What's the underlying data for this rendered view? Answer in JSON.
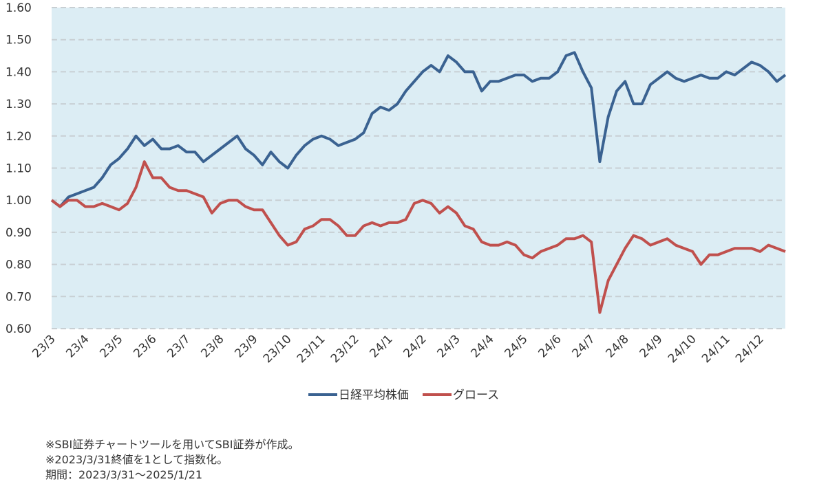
{
  "chart_data": {
    "type": "line",
    "categories": [
      "23/3",
      null,
      null,
      null,
      "23/4",
      null,
      null,
      null,
      "23/5",
      null,
      null,
      null,
      "23/6",
      null,
      null,
      null,
      "23/7",
      null,
      null,
      null,
      "23/8",
      null,
      null,
      null,
      "23/9",
      null,
      null,
      null,
      "23/10",
      null,
      null,
      null,
      "23/11",
      null,
      null,
      null,
      "23/12",
      null,
      null,
      null,
      "24/1",
      null,
      null,
      null,
      "24/2",
      null,
      null,
      null,
      "24/3",
      null,
      null,
      null,
      "24/4",
      null,
      null,
      null,
      "24/5",
      null,
      null,
      null,
      "24/6",
      null,
      null,
      null,
      "24/7",
      null,
      null,
      null,
      "24/8",
      null,
      null,
      null,
      "24/9",
      null,
      null,
      null,
      "24/10",
      null,
      null,
      null,
      "24/11",
      null,
      null,
      null,
      "24/12",
      null,
      null,
      null
    ],
    "series": [
      {
        "name": "日経平均株価",
        "color": "#3a6291",
        "values": [
          1.0,
          0.98,
          1.01,
          1.02,
          1.03,
          1.04,
          1.07,
          1.11,
          1.13,
          1.16,
          1.2,
          1.17,
          1.19,
          1.16,
          1.16,
          1.17,
          1.15,
          1.15,
          1.12,
          1.14,
          1.16,
          1.18,
          1.2,
          1.16,
          1.14,
          1.11,
          1.15,
          1.12,
          1.1,
          1.14,
          1.17,
          1.19,
          1.2,
          1.19,
          1.17,
          1.18,
          1.19,
          1.21,
          1.27,
          1.29,
          1.28,
          1.3,
          1.34,
          1.37,
          1.4,
          1.42,
          1.4,
          1.45,
          1.43,
          1.4,
          1.4,
          1.34,
          1.37,
          1.37,
          1.38,
          1.39,
          1.39,
          1.37,
          1.38,
          1.38,
          1.4,
          1.45,
          1.46,
          1.4,
          1.35,
          1.12,
          1.26,
          1.34,
          1.37,
          1.3,
          1.3,
          1.36,
          1.38,
          1.4,
          1.38,
          1.37,
          1.38,
          1.39,
          1.38,
          1.38,
          1.4,
          1.39,
          1.41,
          1.43,
          1.42,
          1.4,
          1.37,
          1.39
        ]
      },
      {
        "name": "グロース",
        "color": "#c0504d",
        "values": [
          1.0,
          0.98,
          1.0,
          1.0,
          0.98,
          0.98,
          0.99,
          0.98,
          0.97,
          0.99,
          1.04,
          1.12,
          1.07,
          1.07,
          1.04,
          1.03,
          1.03,
          1.02,
          1.01,
          0.96,
          0.99,
          1.0,
          1.0,
          0.98,
          0.97,
          0.97,
          0.93,
          0.89,
          0.86,
          0.87,
          0.91,
          0.92,
          0.94,
          0.94,
          0.92,
          0.89,
          0.89,
          0.92,
          0.93,
          0.92,
          0.93,
          0.93,
          0.94,
          0.99,
          1.0,
          0.99,
          0.96,
          0.98,
          0.96,
          0.92,
          0.91,
          0.87,
          0.86,
          0.86,
          0.87,
          0.86,
          0.83,
          0.82,
          0.84,
          0.85,
          0.86,
          0.88,
          0.88,
          0.89,
          0.87,
          0.65,
          0.75,
          0.8,
          0.85,
          0.89,
          0.88,
          0.86,
          0.87,
          0.88,
          0.86,
          0.85,
          0.84,
          0.8,
          0.83,
          0.83,
          0.84,
          0.85,
          0.85,
          0.85,
          0.84,
          0.86,
          0.85,
          0.84
        ]
      }
    ],
    "ylim": [
      0.6,
      1.6
    ],
    "yticks": [
      {
        "value": 0.6,
        "label": "0.60"
      },
      {
        "value": 0.7,
        "label": "0.70"
      },
      {
        "value": 0.8,
        "label": "0.80"
      },
      {
        "value": 0.9,
        "label": "0.90"
      },
      {
        "value": 1.0,
        "label": "1.00"
      },
      {
        "value": 1.1,
        "label": "1.10"
      },
      {
        "value": 1.2,
        "label": "1.20"
      },
      {
        "value": 1.3,
        "label": "1.30"
      },
      {
        "value": 1.4,
        "label": "1.40"
      },
      {
        "value": 1.5,
        "label": "1.50"
      },
      {
        "value": 1.6,
        "label": "1.60"
      }
    ],
    "grid": true,
    "notes": [
      "※SBI証券チャートツールを用いてSBI証券が作成。",
      "※2023/3/31終値を1として指数化。",
      "期間：2023/3/31～2025/1/21"
    ]
  }
}
